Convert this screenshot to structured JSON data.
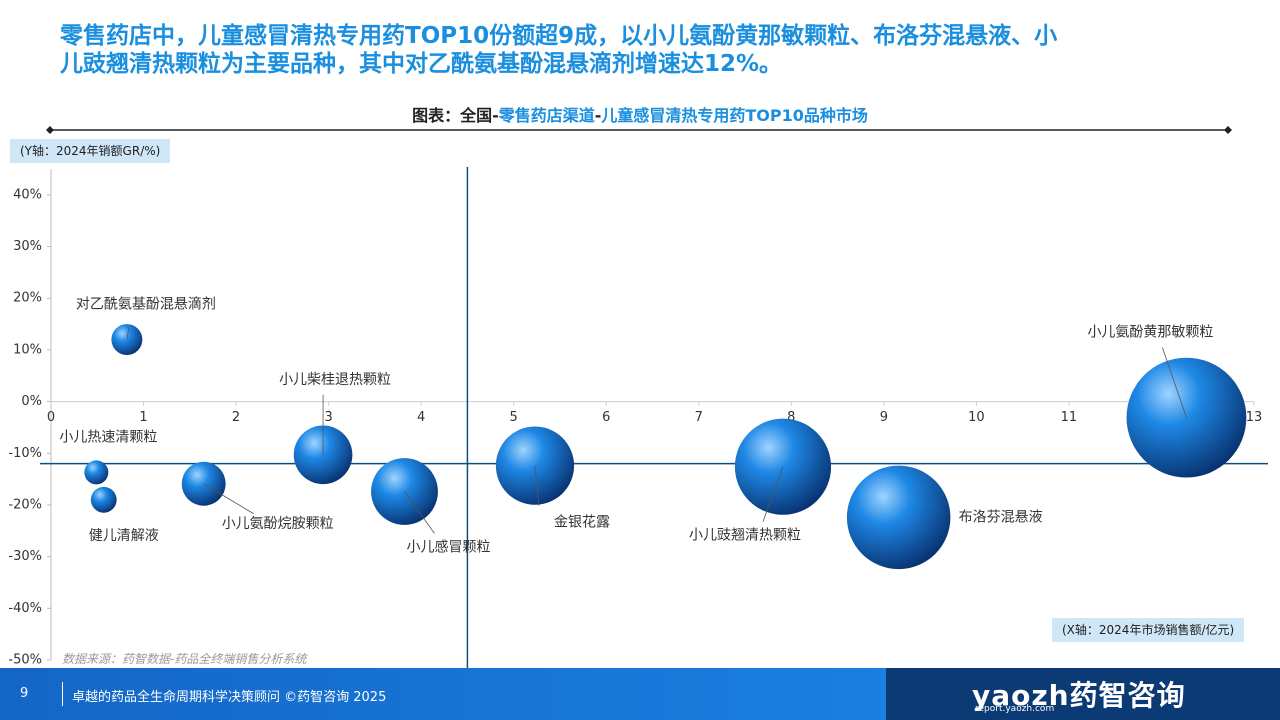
{
  "header": {
    "title_lines": [
      "零售药店中，儿童感冒清热专用药TOP10份额超9成，以小儿氨酚黄那敏颗粒、布洛芬混悬液、小",
      "儿豉翘清热颗粒为主要品种，其中对乙酰氨基酚混悬滴剂增速达12%。"
    ]
  },
  "chart_data": {
    "type": "bubble",
    "subtitle_parts": [
      {
        "text": "图表：全国-",
        "color": "#222222"
      },
      {
        "text": "零售药店渠道",
        "color": "#1a8fe0"
      },
      {
        "text": "-",
        "color": "#222222"
      },
      {
        "text": "儿童感冒清热专用药TOP10品种市场",
        "color": "#1a8fe0"
      }
    ],
    "y_label": "(Y轴：2024年销额GR/%)",
    "x_label": "(X轴：2024年市场销售额/亿元)",
    "source": "数据来源：药智数据-药品全终端销售分析系统",
    "xlim": [
      0,
      13
    ],
    "xticks": [
      0,
      1,
      2,
      3,
      4,
      5,
      6,
      7,
      8,
      9,
      10,
      11,
      12,
      13
    ],
    "ylim": [
      -50,
      45
    ],
    "yticks": [
      {
        "value": 40,
        "label": "40%"
      },
      {
        "value": 30,
        "label": "30%"
      },
      {
        "value": 20,
        "label": "20%"
      },
      {
        "value": 10,
        "label": "10%"
      },
      {
        "value": 0,
        "label": "0%"
      },
      {
        "value": -10,
        "label": "-10%"
      },
      {
        "value": -20,
        "label": "-20%"
      },
      {
        "value": -30,
        "label": "-30%"
      },
      {
        "value": -40,
        "label": "-40%"
      },
      {
        "value": -50,
        "label": "-50%"
      }
    ],
    "reference_x": 4.5,
    "reference_y": -12,
    "series": [
      {
        "color": "#1e88e5",
        "names": [
          "对乙酰氨基酚混悬滴剂",
          "小儿热速清颗粒",
          "健儿清解液",
          "小儿氨酚烷胺颗粒",
          "小儿柴桂退热颗粒",
          "小儿感冒颗粒",
          "金银花露",
          "小儿豉翘清热颗粒",
          "布洛芬混悬液",
          "小儿氨酚黄那敏颗粒"
        ],
        "x": [
          0.82,
          0.49,
          0.57,
          1.65,
          2.94,
          3.82,
          5.23,
          7.91,
          9.16,
          12.27
        ],
        "y": [
          12,
          -13.7,
          -19,
          -15.9,
          -10.3,
          -17.4,
          -12.4,
          -12.6,
          -22.4,
          -3.1
        ]
      }
    ]
  },
  "footer": {
    "page": "9",
    "text": "卓越的药品全生命周期科学决策顾问 ©药智咨询 2025",
    "logo": "yaozh药智咨询",
    "url": "report.yaozh.com"
  }
}
